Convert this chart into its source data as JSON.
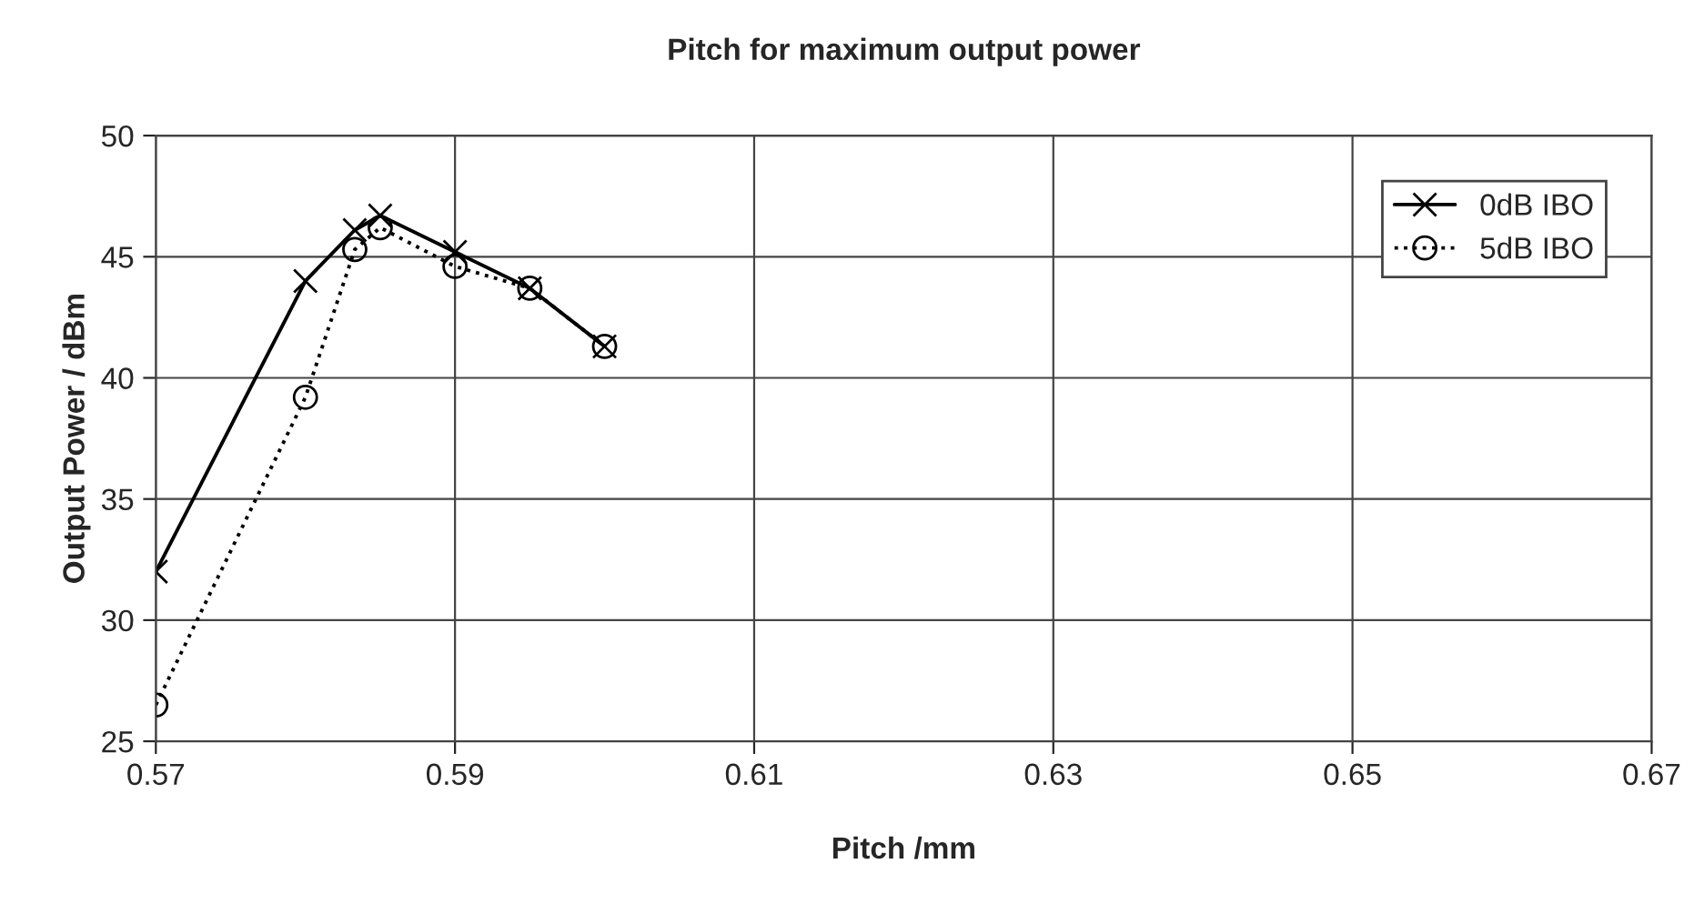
{
  "chart_data": {
    "type": "line",
    "title": "Pitch for maximum output power",
    "xlabel": "Pitch /mm",
    "ylabel": "Output Power / dBm",
    "series": [
      {
        "name": "0dB IBO",
        "color": "#000000",
        "marker": "cross",
        "line_style": "solid",
        "x": [
          0.57,
          0.58,
          0.5833,
          0.585,
          0.59,
          0.595,
          0.6
        ],
        "values": [
          32,
          44,
          46.1,
          46.7,
          45.2,
          43.7,
          41.3
        ]
      },
      {
        "name": "5dB IBO",
        "color": "#000000",
        "marker": "circle",
        "line_style": "dotted",
        "x": [
          0.57,
          0.58,
          0.5833,
          0.585,
          0.59,
          0.595,
          0.6
        ],
        "values": [
          26.5,
          39.2,
          45.3,
          46.2,
          44.6,
          43.7,
          41.3
        ]
      }
    ],
    "xlim": [
      0.57,
      0.67
    ],
    "xticks": [
      0.57,
      0.59,
      0.61,
      0.63,
      0.65,
      0.67
    ],
    "ylim": [
      25,
      50
    ],
    "yticks": [
      25,
      30,
      35,
      40,
      45,
      50
    ],
    "grid": true,
    "legend": "top right"
  }
}
